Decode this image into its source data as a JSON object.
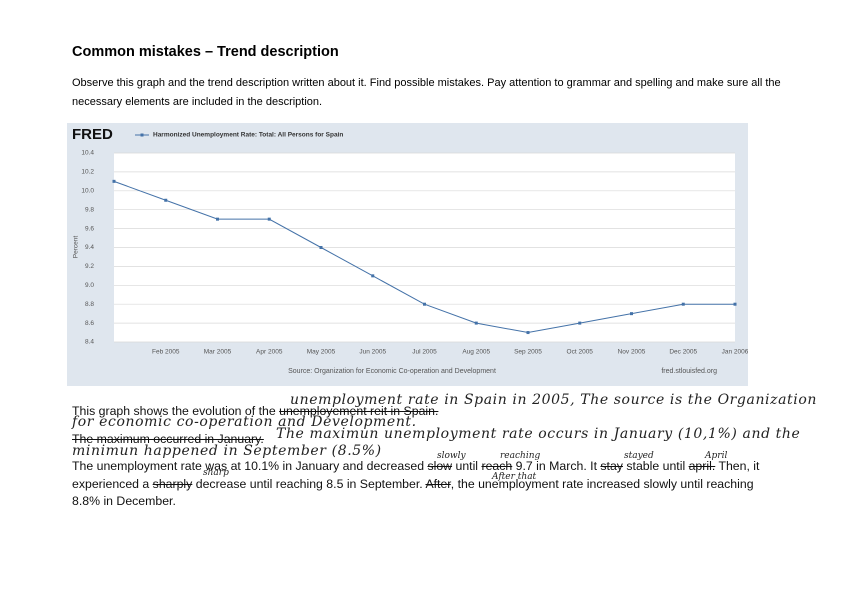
{
  "header": {
    "title": "Common mistakes – Trend description",
    "instruction": "Observe this graph and the trend description written about it. Find possible mistakes. Pay attention to grammar and spelling and make sure all the necessary elements are included in the description."
  },
  "chart_data": {
    "type": "line",
    "brand": "FRED",
    "y_label": "Percent",
    "source": "Source: Organization for Economic Co-operation and Development",
    "url": "fred.stlouisfed.org",
    "categories": [
      null,
      "Feb 2005",
      "Mar 2005",
      "Apr 2005",
      "May 2005",
      "Jun 2005",
      "Jul 2005",
      "Aug 2005",
      "Sep 2005",
      "Oct 2005",
      "Nov 2005",
      "Dec 2005",
      "Jan 2006"
    ],
    "series": [
      {
        "name": "Harmonized Unemployment Rate: Total: All Persons for Spain",
        "color": "#4472a8",
        "values": [
          10.1,
          9.9,
          9.7,
          9.7,
          9.4,
          9.1,
          8.8,
          8.6,
          8.5,
          8.6,
          8.7,
          8.8,
          8.8
        ]
      }
    ],
    "ylim": [
      8.4,
      10.4
    ],
    "yticks": [
      8.4,
      8.6,
      8.8,
      {
        "value": 9,
        "label": "9.0"
      },
      9.2,
      9.4,
      9.6,
      9.8,
      {
        "value": 10,
        "label": "10.0"
      },
      10.2,
      10.4
    ],
    "grid": true
  },
  "paragraphs": [
    {
      "segments": [
        {
          "text": "This graph shows the evolution of the ",
          "struck": false
        },
        {
          "text": "unemployement reit in Spain.",
          "struck": true
        }
      ]
    },
    {
      "segments": [
        {
          "text": "The maximum occurred in January.",
          "struck": true
        }
      ]
    },
    {
      "segments": [
        {
          "text": "The unemployment rate was at 10.1% in January and decreased ",
          "struck": false
        },
        {
          "text": "slow",
          "struck": true
        },
        {
          "text": " until ",
          "struck": false
        },
        {
          "text": "reach",
          "struck": true
        },
        {
          "text": " 9.7 in March. It ",
          "struck": false
        },
        {
          "text": "stay",
          "struck": true
        },
        {
          "text": " stable until ",
          "struck": false
        },
        {
          "text": "april.",
          "struck": true
        },
        {
          "text": " Then, it experienced a ",
          "struck": false
        },
        {
          "text": "sharply",
          "struck": true
        },
        {
          "text": " decrease until reaching 8.5 in September. ",
          "struck": false
        },
        {
          "text": "After",
          "struck": true
        },
        {
          "text": ", the unemployment rate increased slowly until reaching 8.8% in December.",
          "struck": false
        }
      ]
    }
  ],
  "handwriting": [
    "unemployment rate in Spain in 2005, The source is the Organization",
    "for economic co-operation and Development.",
    "The maximun unemployment rate occurs in January (10,1%) and the",
    "minimun happened in September (8.5%)",
    "slowly",
    "reaching",
    "stayed",
    "April",
    "sharp",
    "After that"
  ]
}
